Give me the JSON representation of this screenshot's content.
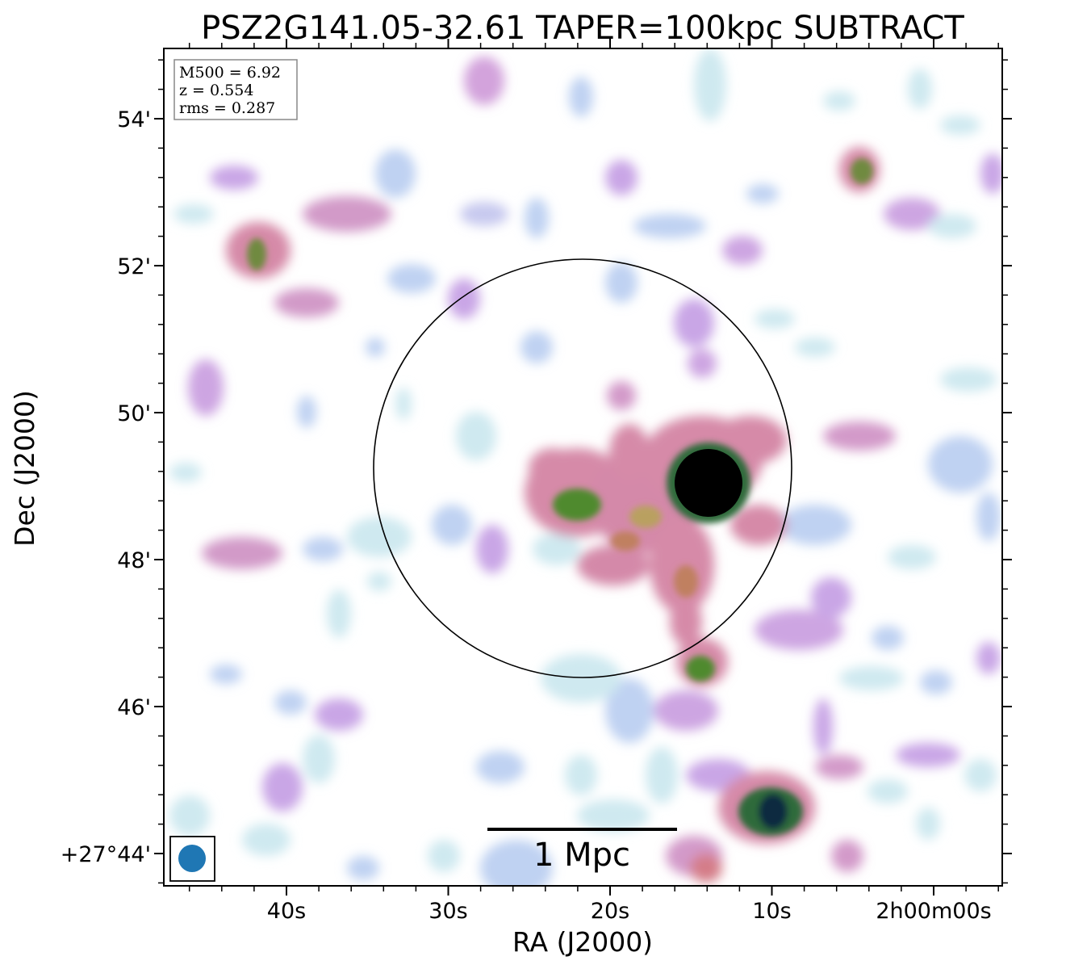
{
  "title": "PSZ2G141.05-32.61 TAPER=100kpc SUBTRACT",
  "x_axis_label": "RA (J2000)",
  "y_axis_label": "Dec (J2000)",
  "info_box": {
    "lines": [
      "M500 = 6.92",
      "z = 0.554",
      "rms = 0.287"
    ]
  },
  "scalebar_label": "1 Mpc",
  "chart_data": {
    "type": "heatmap",
    "title": "PSZ2G141.05-32.61 TAPER=100kpc SUBTRACT",
    "xlabel": "RA (J2000)",
    "ylabel": "Dec (J2000)",
    "x_ticks": [
      "40s",
      "30s",
      "20s",
      "10s",
      "2h00m00s"
    ],
    "y_ticks": [
      "54'",
      "52'",
      "50'",
      "48'",
      "46'",
      "+27°44'"
    ],
    "colormap": [
      "#ffffff",
      "#d4f0ee",
      "#b9cff0",
      "#c9a6e6",
      "#d789b4",
      "#d47d88",
      "#4f8a2e",
      "#1d5e45",
      "#000000"
    ],
    "scalebar": "1 Mpc",
    "beam_color": "#1f77b4",
    "annotations": [
      "M500 = 6.92",
      "z = 0.554",
      "rms = 0.287"
    ]
  }
}
